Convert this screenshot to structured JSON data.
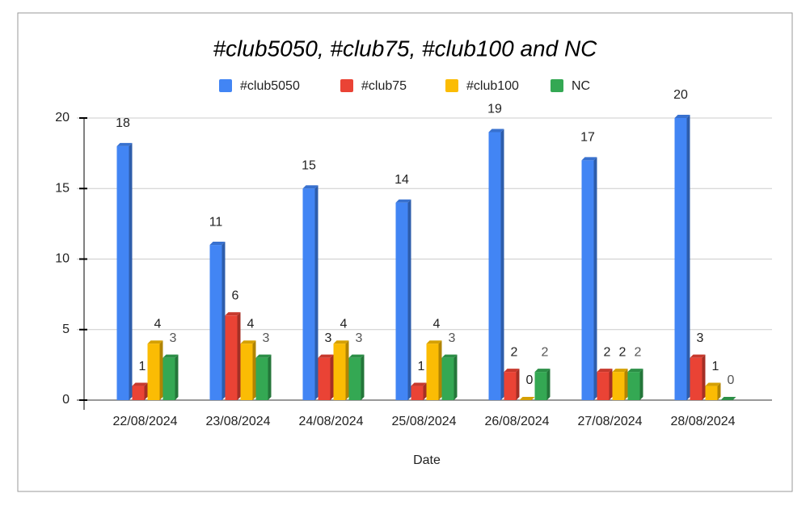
{
  "chart_data": {
    "type": "bar",
    "title": "#club5050, #club75, #club100 and NC",
    "x_label": "Date",
    "categories": [
      "22/08/2024",
      "23/08/2024",
      "24/08/2024",
      "25/08/2024",
      "26/08/2024",
      "27/08/2024",
      "28/08/2024"
    ],
    "series": [
      {
        "name": "#club5050",
        "color": "#4285f4",
        "values": [
          18,
          11,
          15,
          14,
          19,
          17,
          20
        ]
      },
      {
        "name": "#club75",
        "color": "#ea4335",
        "values": [
          1,
          6,
          3,
          1,
          2,
          2,
          3
        ]
      },
      {
        "name": "#club100",
        "color": "#fbbc04",
        "values": [
          4,
          4,
          4,
          4,
          0,
          2,
          1
        ]
      },
      {
        "name": "NC",
        "color": "#34a853",
        "values": [
          3,
          3,
          3,
          3,
          2,
          2,
          0
        ]
      }
    ],
    "ylim": [
      0,
      20
    ],
    "yticks": [
      0,
      5,
      10,
      15,
      20
    ],
    "grid": true,
    "legend": "top"
  }
}
